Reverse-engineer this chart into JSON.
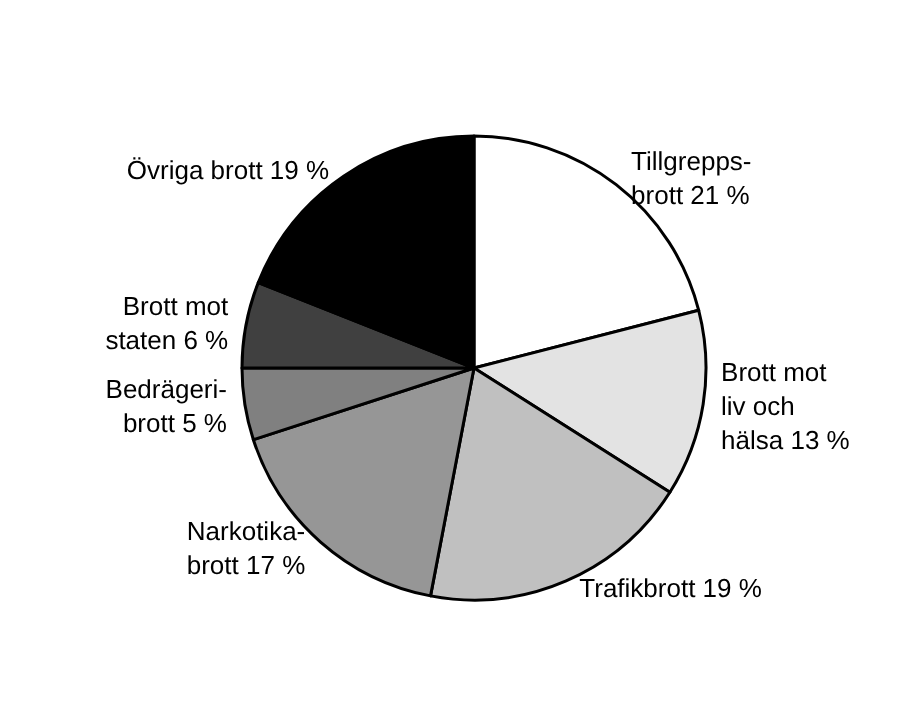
{
  "chart_data": {
    "type": "pie",
    "categories": [
      "Tillgrepps-\nbrott",
      "Brott mot\nliv och\nhälsa",
      "Trafikbrott",
      "Narkotika-\nbrott",
      "Bedrägeri-\nbrott",
      "Brott mot\nstaten",
      "Övriga brott"
    ],
    "values": [
      21,
      13,
      19,
      17,
      5,
      6,
      19
    ],
    "value_labels": [
      "21 %",
      "13 %",
      "19 %",
      "17 %",
      "5 %",
      "6 %",
      "19 %"
    ],
    "colors": [
      "#ffffff",
      "#e3e3e3",
      "#c0c0c0",
      "#969696",
      "#808080",
      "#404040",
      "#000000"
    ],
    "legend": false
  }
}
